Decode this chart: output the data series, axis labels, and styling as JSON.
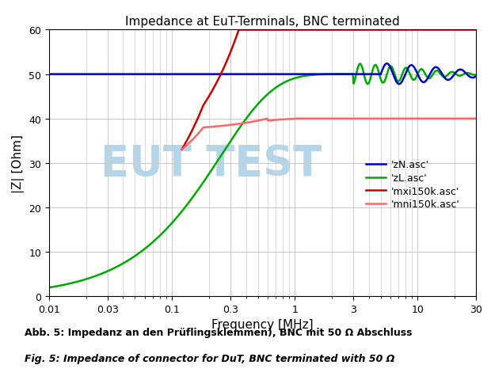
{
  "title": "Impedance at EuT-Terminals, BNC terminated",
  "xlabel": "Frequency [MHz]",
  "ylabel": "|Z| [Ohm]",
  "xlim": [
    0.01,
    30
  ],
  "ylim": [
    0,
    60
  ],
  "yticks": [
    0,
    10,
    20,
    30,
    40,
    50,
    60
  ],
  "xtick_vals": [
    0.01,
    0.03,
    0.1,
    0.3,
    1,
    3,
    10,
    30
  ],
  "legend_labels": [
    "'zN.asc'",
    "'zL.asc'",
    "'mxi150k.asc'",
    "'mni150k.asc'"
  ],
  "line_zN_color": "#0000cc",
  "line_zL_color": "#00aa00",
  "line_mxi_color": "#cc0000",
  "line_mni_color": "#ff6666",
  "watermark_text": "EUT TEST",
  "watermark_color": "#6aafd6",
  "watermark_alpha": 0.5,
  "caption_bold": "Abb. 5: Impedanz an den Prüflingsklemmen), BNC mit 50 Ω Abschluss",
  "caption_italic": "Fig. 5: Impedance of connector for DuT, BNC terminated with 50 Ω",
  "background_color": "#ffffff",
  "grid_color": "#cccccc"
}
